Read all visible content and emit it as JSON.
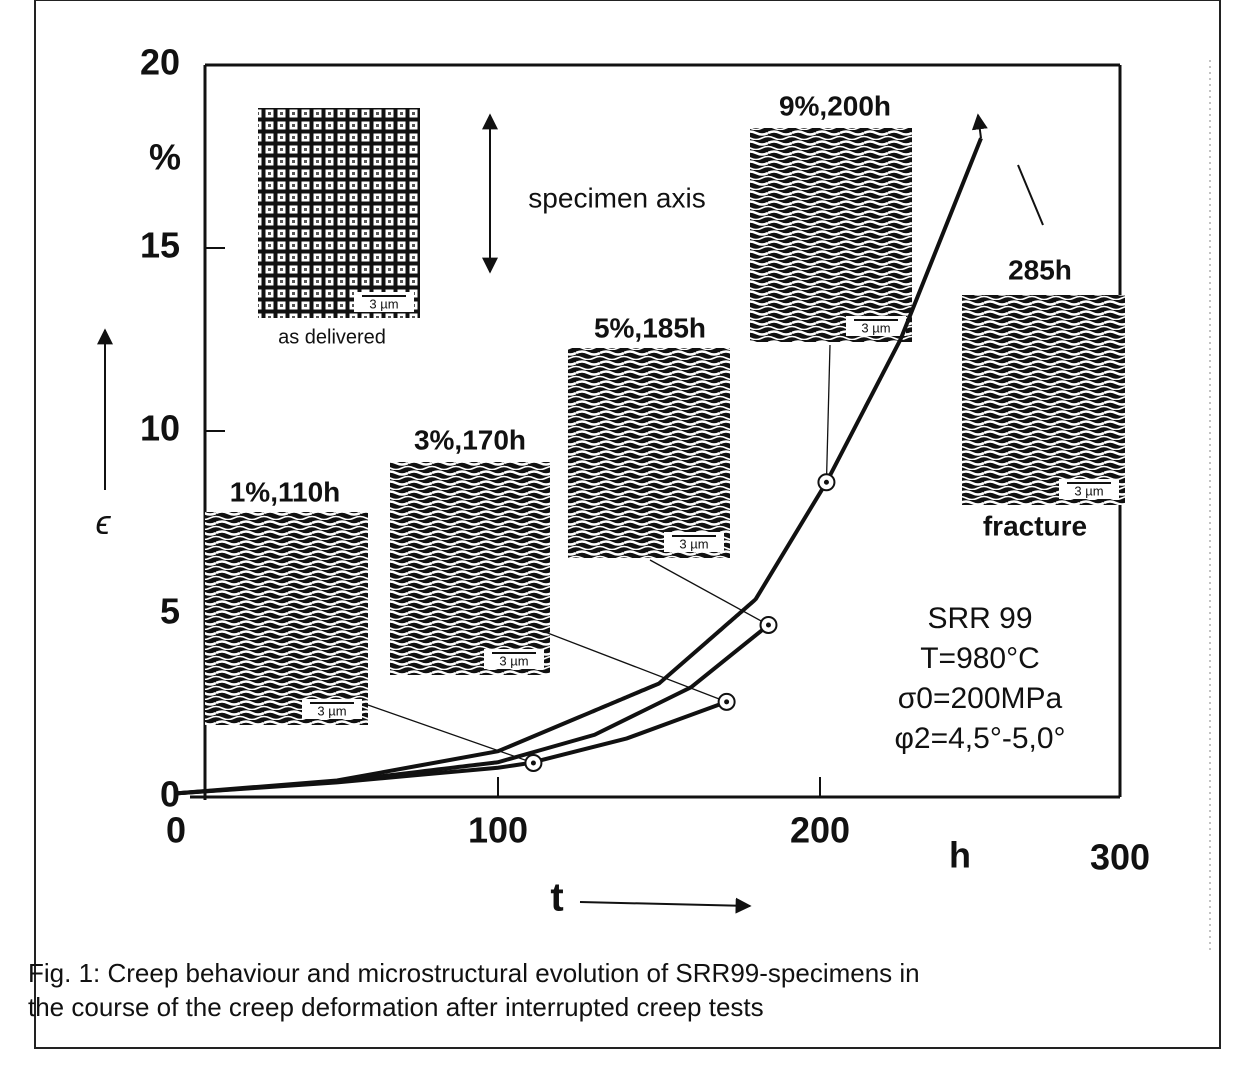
{
  "chart_data": {
    "type": "line",
    "xlim": [
      0,
      300
    ],
    "ylim": [
      0,
      20
    ],
    "xticks": [
      0,
      100,
      200,
      300
    ],
    "yticks": [
      0,
      5,
      10,
      15,
      20
    ],
    "x_label": "t",
    "y_label": "ϵ",
    "x_unit": "h",
    "y_unit": "%",
    "color": "#111111",
    "series": [
      {
        "x": [
          0,
          50,
          100,
          110,
          140,
          171
        ],
        "values": [
          0.1,
          0.4,
          0.8,
          0.93,
          1.6,
          2.6
        ]
      },
      {
        "x": [
          0,
          50,
          100,
          130,
          160,
          184
        ],
        "values": [
          0.1,
          0.42,
          0.95,
          1.7,
          3.0,
          4.7
        ]
      },
      {
        "x": [
          0,
          50,
          100,
          150,
          180,
          202,
          225,
          250
        ],
        "values": [
          0.1,
          0.45,
          1.25,
          3.1,
          5.4,
          8.6,
          12.5,
          18.0
        ]
      }
    ],
    "points": {
      "x": [
        111,
        171,
        184,
        202
      ],
      "values": [
        0.93,
        2.6,
        4.7,
        8.6
      ]
    },
    "micrographs": [
      {
        "label": "as delivered",
        "scale": "3 µm"
      },
      {
        "label": "1%,110h",
        "scale": "3 µm"
      },
      {
        "label": "3%,170h",
        "scale": "3 µm"
      },
      {
        "label": "5%,185h",
        "scale": "3 µm"
      },
      {
        "label": "9%,200h",
        "scale": "3 µm"
      },
      {
        "label": "285h",
        "scale": "3 µm"
      }
    ],
    "fracture_label": "fracture",
    "axis_note": "specimen axis",
    "annotations": [
      "SRR 99",
      "T=980°C",
      "σ0=200MPa",
      "φ2=4,5°-5,0°"
    ],
    "caption": [
      "Fig. 1: Creep behaviour and microstructural evolution of SRR99-specimens in",
      "the course of the creep deformation after interrupted creep tests"
    ]
  }
}
